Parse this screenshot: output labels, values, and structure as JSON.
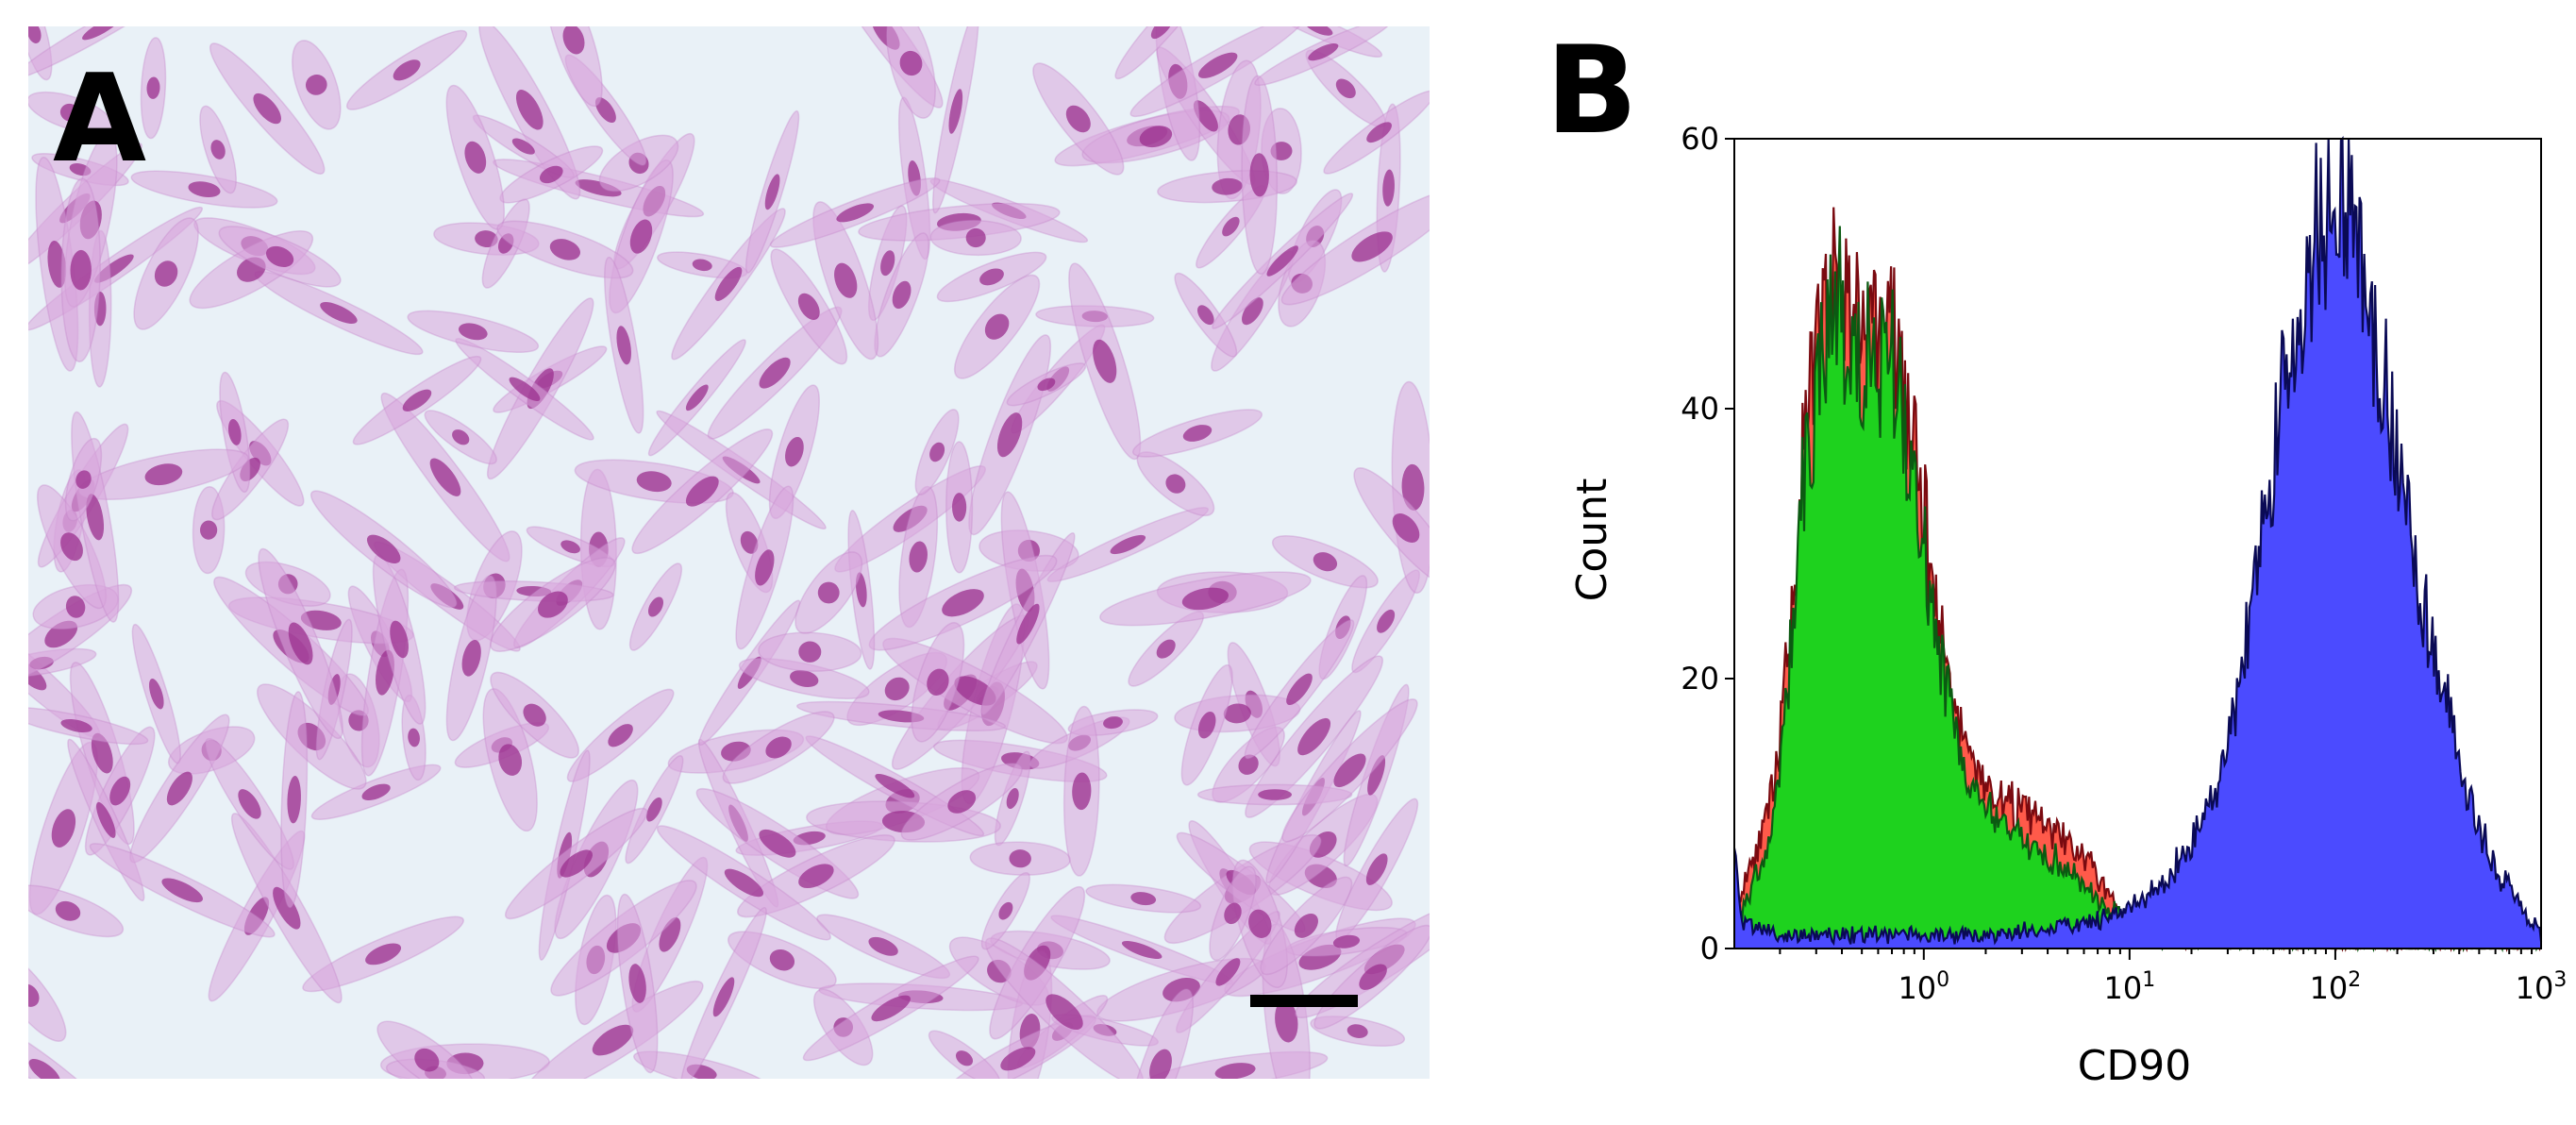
{
  "panel_a": {
    "letter": "A",
    "colors": {
      "background": "#e9f1f7",
      "cell_body": "#d9a6dc",
      "cell_edge": "#c484c8",
      "nucleus": "#9b2f8e",
      "scale_bar": "#000000"
    }
  },
  "panel_b": {
    "letter": "B"
  },
  "chart_data": {
    "type": "area",
    "xlabel": "CD90",
    "ylabel": "Count",
    "xscale": "log",
    "xlim": [
      0.12,
      1000
    ],
    "ylim": [
      0,
      60
    ],
    "yticks": [
      0,
      20,
      40,
      60
    ],
    "ytick_labels": [
      "0",
      "20",
      "40",
      "60"
    ],
    "xticks": [
      1,
      10,
      100,
      1000
    ],
    "xtick_labels": [
      {
        "base": "10",
        "exp": "0"
      },
      {
        "base": "10",
        "exp": "1"
      },
      {
        "base": "10",
        "exp": "2"
      },
      {
        "base": "10",
        "exp": "3"
      }
    ],
    "grid": false,
    "series": [
      {
        "role": "isotype-red",
        "fill": "#ff5a4a",
        "stroke": "#7a0a10",
        "points": [
          [
            0.12,
            2
          ],
          [
            0.14,
            6
          ],
          [
            0.16,
            8
          ],
          [
            0.19,
            12
          ],
          [
            0.22,
            22
          ],
          [
            0.26,
            36
          ],
          [
            0.3,
            44
          ],
          [
            0.35,
            48
          ],
          [
            0.4,
            49
          ],
          [
            0.46,
            47
          ],
          [
            0.52,
            46
          ],
          [
            0.6,
            45
          ],
          [
            0.7,
            46
          ],
          [
            0.8,
            41
          ],
          [
            0.9,
            36
          ],
          [
            1.0,
            32
          ],
          [
            1.2,
            24
          ],
          [
            1.5,
            16
          ],
          [
            2.0,
            12
          ],
          [
            2.5,
            11
          ],
          [
            3.2,
            10
          ],
          [
            4.0,
            9
          ],
          [
            5.0,
            8
          ],
          [
            6.5,
            6
          ],
          [
            8.0,
            4
          ],
          [
            10,
            2
          ],
          [
            13,
            1
          ],
          [
            20,
            0.5
          ],
          [
            40,
            0.3
          ],
          [
            100,
            0.2
          ],
          [
            1000,
            0.1
          ]
        ]
      },
      {
        "role": "unstained-green",
        "fill": "#1ed21e",
        "stroke": "#0b5a12",
        "points": [
          [
            0.12,
            1
          ],
          [
            0.14,
            4
          ],
          [
            0.16,
            6
          ],
          [
            0.19,
            10
          ],
          [
            0.22,
            20
          ],
          [
            0.26,
            34
          ],
          [
            0.3,
            42
          ],
          [
            0.35,
            46
          ],
          [
            0.4,
            47
          ],
          [
            0.46,
            45
          ],
          [
            0.52,
            44
          ],
          [
            0.6,
            43
          ],
          [
            0.7,
            44
          ],
          [
            0.8,
            40
          ],
          [
            0.9,
            35
          ],
          [
            1.0,
            30
          ],
          [
            1.2,
            22
          ],
          [
            1.5,
            14
          ],
          [
            2.0,
            10
          ],
          [
            2.5,
            9
          ],
          [
            3.2,
            8
          ],
          [
            4.0,
            7
          ],
          [
            5.0,
            6
          ],
          [
            6.5,
            4
          ],
          [
            8.0,
            3
          ],
          [
            10,
            1.5
          ],
          [
            13,
            0.8
          ],
          [
            20,
            0.4
          ],
          [
            40,
            0.2
          ],
          [
            100,
            0.1
          ],
          [
            1000,
            0.1
          ]
        ]
      },
      {
        "role": "cd90-blue",
        "fill": "#4b4bff",
        "stroke": "#0a0a55",
        "points": [
          [
            0.12,
            8
          ],
          [
            0.13,
            2
          ],
          [
            0.2,
            1
          ],
          [
            0.5,
            1
          ],
          [
            1.0,
            1
          ],
          [
            2.0,
            1
          ],
          [
            4.0,
            1.5
          ],
          [
            7,
            2
          ],
          [
            10,
            3
          ],
          [
            15,
            5
          ],
          [
            20,
            8
          ],
          [
            25,
            11
          ],
          [
            30,
            15
          ],
          [
            40,
            26
          ],
          [
            50,
            36
          ],
          [
            60,
            43
          ],
          [
            70,
            48
          ],
          [
            80,
            52
          ],
          [
            90,
            54
          ],
          [
            100,
            55
          ],
          [
            120,
            54
          ],
          [
            140,
            50
          ],
          [
            160,
            45
          ],
          [
            200,
            36
          ],
          [
            250,
            28
          ],
          [
            300,
            22
          ],
          [
            400,
            14
          ],
          [
            500,
            9
          ],
          [
            600,
            6
          ],
          [
            800,
            3
          ],
          [
            1000,
            1
          ]
        ]
      }
    ]
  }
}
